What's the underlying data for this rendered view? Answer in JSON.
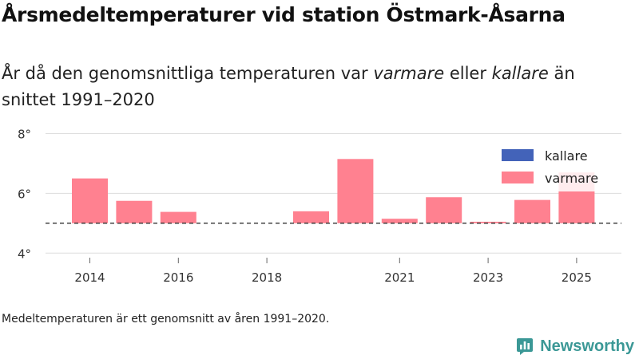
{
  "title": "Årsmedeltemperaturer vid station Östmark-Åsarna",
  "subtitle": {
    "part1": "År då den genomsnittliga temperaturen var ",
    "warm_word": "varmare",
    "part2": " eller ",
    "cold_word": "kallare",
    "part3": " än snittet 1991–2020"
  },
  "footnote": "Medeltemperaturen är ett genomsnitt av åren 1991–2020.",
  "brand": {
    "name": "Newsworthy",
    "icon": "newsworthy-logo-icon"
  },
  "colors": {
    "warmer": "#ff8190",
    "colder": "#4363b9",
    "brand": "#3b9896"
  },
  "chart_data": {
    "type": "bar",
    "baseline": 5.0,
    "baseline_style": "dashed",
    "ylim": [
      3.9,
      8.2
    ],
    "y_ticks": [
      4,
      6,
      8
    ],
    "y_tick_labels": [
      "4°",
      "6°",
      "8°"
    ],
    "x_ticks": [
      2014,
      2016,
      2018,
      2021,
      2023,
      2025
    ],
    "x_tick_labels": [
      "2014",
      "2016",
      "2018",
      "2021",
      "2023",
      "2025"
    ],
    "x_range": [
      2013,
      2025
    ],
    "legend": {
      "position": "top-right",
      "items": [
        {
          "label": "kallare",
          "color_key": "colder"
        },
        {
          "label": "varmare",
          "color_key": "warmer"
        }
      ]
    },
    "categories": [
      2014,
      2015,
      2016,
      2019,
      2020,
      2021,
      2022,
      2023,
      2024,
      2025
    ],
    "values": [
      6.5,
      5.75,
      5.38,
      5.4,
      7.15,
      5.15,
      5.87,
      5.05,
      5.78,
      6.7
    ]
  }
}
